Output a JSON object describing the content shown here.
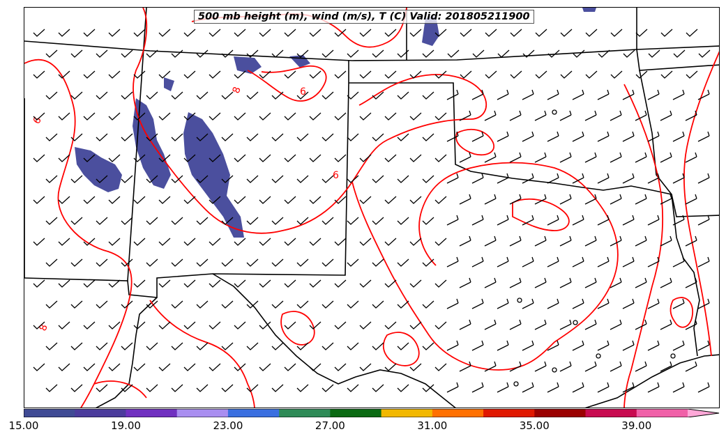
{
  "title": "500 mb height (m), wind (m/s), T (C) Valid: 201805211900",
  "contour_label_value": "6",
  "contour_label_secondary": "8",
  "colorbar": {
    "ticks": [
      "15.00",
      "19.00",
      "23.00",
      "27.00",
      "31.00",
      "35.00",
      "39.00"
    ],
    "colors": [
      "#3f4a94",
      "#4b3b9c",
      "#7030c0",
      "#a98ef0",
      "#3a6fe0",
      "#2e8b57",
      "#0a6a12",
      "#f2b800",
      "#ff7000",
      "#e01800",
      "#9a0000",
      "#c80a50",
      "#f060a8",
      "#ffa8d8"
    ],
    "extend": "max"
  },
  "colors": {
    "temperature_contour": "#ff0000",
    "precip_fill": "#4b4f9e",
    "boundaries": "#000000"
  }
}
